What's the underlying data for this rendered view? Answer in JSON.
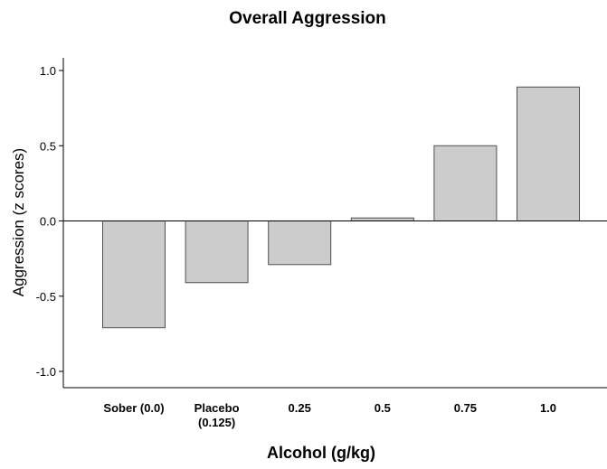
{
  "chart_data": {
    "type": "bar",
    "title": "Overall Aggression",
    "xlabel": "Alcohol (g/kg)",
    "ylabel": "Aggression (z scores)",
    "categories": [
      [
        "Sober (0.0)"
      ],
      [
        "Placebo",
        "(0.125)"
      ],
      [
        "0.25"
      ],
      [
        "0.5"
      ],
      [
        "0.75"
      ],
      [
        "1.0"
      ]
    ],
    "values": [
      -0.71,
      -0.41,
      -0.29,
      0.02,
      0.5,
      0.89
    ],
    "ylim": [
      -1.1,
      1.1
    ],
    "yticks": [
      1.0,
      0.5,
      0.0,
      -0.5,
      -1.0
    ],
    "ytick_labels": [
      "1.0",
      "0.5",
      "0.0",
      "-0.5",
      "-1.0"
    ],
    "bar_color": "#cccccc",
    "bar_edge_color": "#505050",
    "grid": false,
    "legend": "none"
  }
}
